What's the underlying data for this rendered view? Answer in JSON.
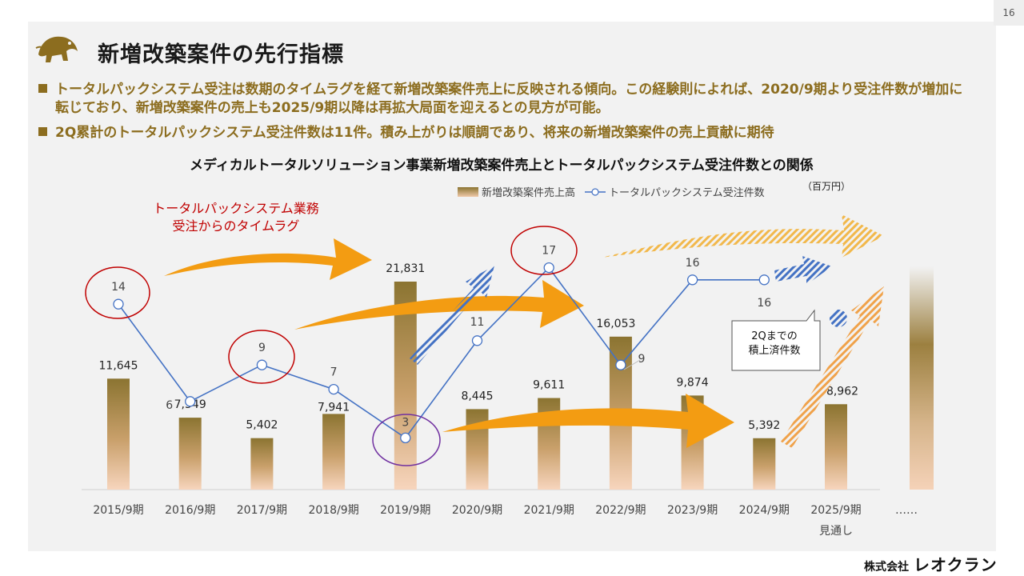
{
  "page": {
    "number": "16",
    "title": "新増改築案件の先行指標",
    "bullets": [
      "トータルパックシステム受注は数期のタイムラグを経て新増改築案件売上に反映される傾向。この経験則によれば、2020/9期より受注件数が増加に転じており、新増改築案件の売上も2025/9期以降は再拡大局面を迎えるとの見方が可能。",
      "2Q累計のトータルパックシステム受注件数は11件。積み上がりは順調であり、将来の新増改築案件の売上貢献に期待"
    ],
    "annotation_lag": [
      "トータルパックシステム業務",
      "受注からのタイムラグ"
    ],
    "callout": [
      "2Qまでの",
      "積上済件数"
    ],
    "footer": {
      "company_prefix": "株式会社",
      "company_name": "レオクラン"
    }
  },
  "colors": {
    "accent": "#8c6d1f",
    "bar_top": "#8b7431",
    "bar_bottom": "#f2cdb0",
    "line": "#4472c4",
    "circle_red": "#c00000",
    "circle_purple": "#7030a0",
    "arrow_orange": "#f39c12"
  },
  "chart_data": {
    "type": "bar+line",
    "title": "メディカルトータルソリューション事業新増改築案件売上とトータルパックシステム受注件数との関係",
    "unit": "（百万円）",
    "categories": [
      "2015/9期",
      "2016/9期",
      "2017/9期",
      "2018/9期",
      "2019/9期",
      "2020/9期",
      "2021/9期",
      "2022/9期",
      "2023/9期",
      "2024/9期",
      "2025/9期"
    ],
    "category_sublabels": {
      "2025/9期": "見通し"
    },
    "extra_category": "……",
    "series": [
      {
        "name": "新増改築案件売上高",
        "type": "bar",
        "values": [
          11645,
          7549,
          5402,
          7941,
          21831,
          8445,
          9611,
          16053,
          9874,
          5392,
          8962
        ],
        "labels": [
          "11,645",
          "7,549",
          "5,402",
          "7,941",
          "21,831",
          "8,445",
          "9,611",
          "16,053",
          "9,874",
          "5,392",
          "8,962"
        ]
      },
      {
        "name": "トータルパックシステム受注件数",
        "type": "line",
        "values": [
          14,
          6,
          9,
          7,
          3,
          11,
          17,
          9,
          16,
          16,
          null
        ],
        "labels": [
          "14",
          "6",
          "9",
          "7",
          "3",
          "11",
          "17",
          "9",
          "16",
          "16",
          ""
        ]
      }
    ],
    "bar_ylim": [
      0,
      26000
    ],
    "line_ylim": [
      0,
      21
    ],
    "grid": false
  }
}
